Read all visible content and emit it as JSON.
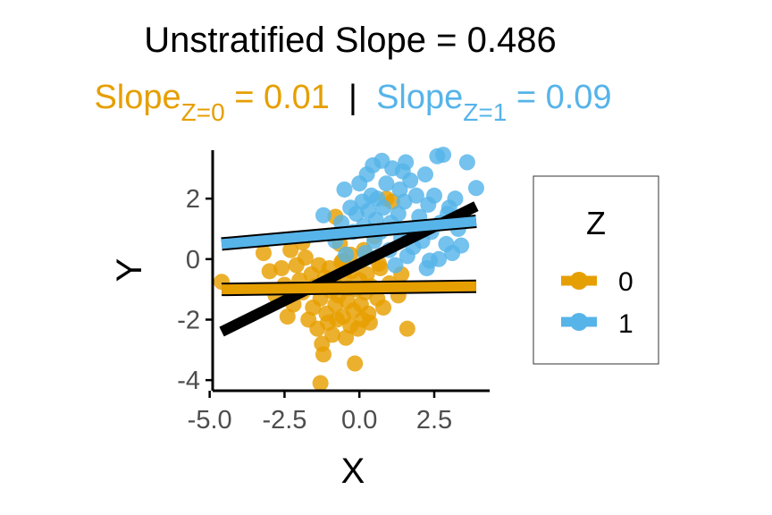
{
  "title": "Unstratified Slope = 0.486",
  "subtitle": {
    "z0": {
      "word": "Slope",
      "subscript": "Z=0",
      "rest": " = 0.01"
    },
    "separator": " | ",
    "z1": {
      "word": "Slope",
      "subscript": "Z=1",
      "rest": " = 0.09"
    }
  },
  "colors": {
    "z0": "#E69F00",
    "z1": "#56B4E9",
    "overall": "#000000",
    "axis": "#000000"
  },
  "chart_data": {
    "type": "scatter",
    "xlabel": "X",
    "ylabel": "Y",
    "xlim": [
      -4.9,
      4.35
    ],
    "ylim": [
      -4.35,
      3.6
    ],
    "xticks": [
      -5.0,
      -2.5,
      0.0,
      2.5
    ],
    "xtick_labels": [
      "-5.0",
      "-2.5",
      "0.0",
      "2.5"
    ],
    "yticks": [
      -4,
      -2,
      0,
      2
    ],
    "ytick_labels": [
      "-4",
      "-2",
      "0",
      "2"
    ],
    "grid": false,
    "legend": {
      "title": "Z",
      "placement": "right",
      "entries": [
        "0",
        "1"
      ]
    },
    "series": [
      {
        "name": "0",
        "color": "#E69F00",
        "points": [
          [
            -4.6,
            -0.75
          ],
          [
            -3.2,
            0.2
          ],
          [
            -3.0,
            -0.4
          ],
          [
            -2.8,
            -1.2
          ],
          [
            -2.6,
            -0.3
          ],
          [
            -2.5,
            -0.85
          ],
          [
            -2.3,
            0.3
          ],
          [
            -2.2,
            -1.5
          ],
          [
            -2.1,
            -0.2
          ],
          [
            -2.0,
            -0.7
          ],
          [
            -1.9,
            -1.1
          ],
          [
            -1.8,
            0.05
          ],
          [
            -1.7,
            -2.0
          ],
          [
            -1.6,
            -0.5
          ],
          [
            -1.55,
            -1.6
          ],
          [
            -1.5,
            -0.9
          ],
          [
            -1.4,
            -2.3
          ],
          [
            -1.35,
            -0.2
          ],
          [
            -1.3,
            -1.3
          ],
          [
            -1.25,
            -2.8
          ],
          [
            -1.2,
            -3.15
          ],
          [
            -1.15,
            -0.6
          ],
          [
            -1.1,
            -1.8
          ],
          [
            -1.05,
            -2.1
          ],
          [
            -1.0,
            -0.3
          ],
          [
            -0.95,
            -1.05
          ],
          [
            -0.9,
            -2.5
          ],
          [
            -0.85,
            -0.8
          ],
          [
            -0.8,
            -1.5
          ],
          [
            -0.75,
            -2.0
          ],
          [
            -0.7,
            -1.2
          ],
          [
            -0.65,
            0.5
          ],
          [
            -0.6,
            -0.1
          ],
          [
            -0.55,
            -1.9
          ],
          [
            -0.5,
            -0.6
          ],
          [
            -0.45,
            -2.6
          ],
          [
            -0.4,
            -1.4
          ],
          [
            -0.35,
            -0.95
          ],
          [
            -0.3,
            -2.2
          ],
          [
            -0.25,
            -0.4
          ],
          [
            -0.2,
            -1.7
          ],
          [
            -0.15,
            -3.45
          ],
          [
            -0.1,
            -1.0
          ],
          [
            -0.05,
            -2.3
          ],
          [
            0.0,
            -0.7
          ],
          [
            0.05,
            -1.5
          ],
          [
            0.1,
            -2.0
          ],
          [
            0.15,
            0.3
          ],
          [
            0.2,
            -1.1
          ],
          [
            0.25,
            -0.5
          ],
          [
            0.3,
            -1.8
          ],
          [
            0.35,
            -2.1
          ],
          [
            0.4,
            -0.9
          ],
          [
            0.5,
            0.75
          ],
          [
            0.6,
            -1.3
          ],
          [
            0.7,
            -0.3
          ],
          [
            0.8,
            -1.6
          ],
          [
            0.9,
            2.0
          ],
          [
            1.0,
            -0.8
          ],
          [
            1.1,
            1.9
          ],
          [
            1.3,
            -1.2
          ],
          [
            1.4,
            -0.5
          ],
          [
            1.6,
            -2.3
          ],
          [
            -1.3,
            -4.1
          ],
          [
            -0.8,
            1.4
          ],
          [
            -1.9,
            0.55
          ],
          [
            -2.4,
            -1.9
          ],
          [
            -0.3,
            0.15
          ],
          [
            0.65,
            -0.15
          ],
          [
            -0.55,
            -0.05
          ]
        ]
      },
      {
        "name": "1",
        "color": "#56B4E9",
        "points": [
          [
            -1.2,
            1.45
          ],
          [
            -0.8,
            0.6
          ],
          [
            -0.6,
            1.2
          ],
          [
            -0.5,
            2.3
          ],
          [
            -0.3,
            1.7
          ],
          [
            -0.2,
            0.9
          ],
          [
            -0.1,
            1.5
          ],
          [
            0.0,
            2.5
          ],
          [
            0.1,
            1.9
          ],
          [
            0.15,
            1.1
          ],
          [
            0.2,
            0.2
          ],
          [
            0.3,
            1.6
          ],
          [
            0.4,
            2.1
          ],
          [
            0.45,
            3.1
          ],
          [
            0.5,
            0.6
          ],
          [
            0.55,
            1.3
          ],
          [
            0.6,
            2.0
          ],
          [
            0.7,
            0.9
          ],
          [
            0.8,
            1.7
          ],
          [
            0.9,
            2.5
          ],
          [
            1.0,
            0.3
          ],
          [
            1.05,
            1.2
          ],
          [
            1.1,
            3.0
          ],
          [
            1.2,
            -0.2
          ],
          [
            1.3,
            1.5
          ],
          [
            1.35,
            2.3
          ],
          [
            1.4,
            0.7
          ],
          [
            1.5,
            1.9
          ],
          [
            1.55,
            3.2
          ],
          [
            1.6,
            0.1
          ],
          [
            1.7,
            2.6
          ],
          [
            1.75,
            1.0
          ],
          [
            1.8,
            0.4
          ],
          [
            1.9,
            2.1
          ],
          [
            2.0,
            1.4
          ],
          [
            2.1,
            0.6
          ],
          [
            2.2,
            2.8
          ],
          [
            2.25,
            -0.3
          ],
          [
            2.3,
            1.8
          ],
          [
            2.4,
            0.9
          ],
          [
            2.5,
            2.1
          ],
          [
            2.6,
            3.4
          ],
          [
            2.7,
            1.2
          ],
          [
            2.8,
            3.45
          ],
          [
            2.9,
            0.5
          ],
          [
            3.0,
            1.7
          ],
          [
            3.1,
            0.2
          ],
          [
            3.2,
            2.0
          ],
          [
            3.3,
            1.0
          ],
          [
            3.4,
            0.45
          ],
          [
            3.6,
            3.2
          ],
          [
            3.9,
            2.35
          ],
          [
            2.35,
            -0.05
          ],
          [
            1.45,
            2.9
          ],
          [
            0.75,
            3.25
          ],
          [
            -0.45,
            0.15
          ],
          [
            2.65,
            0.0
          ],
          [
            1.65,
            0.85
          ],
          [
            2.95,
            1.5
          ],
          [
            0.25,
            2.8
          ]
        ]
      }
    ],
    "fit_lines": [
      {
        "name": "overall",
        "x": [
          -4.6,
          3.9
        ],
        "y": [
          -2.4,
          1.75
        ]
      },
      {
        "name": "0",
        "x": [
          -4.6,
          3.9
        ],
        "y": [
          -1.0,
          -0.9
        ]
      },
      {
        "name": "1",
        "x": [
          -4.6,
          3.9
        ],
        "y": [
          0.5,
          1.25
        ]
      }
    ]
  }
}
